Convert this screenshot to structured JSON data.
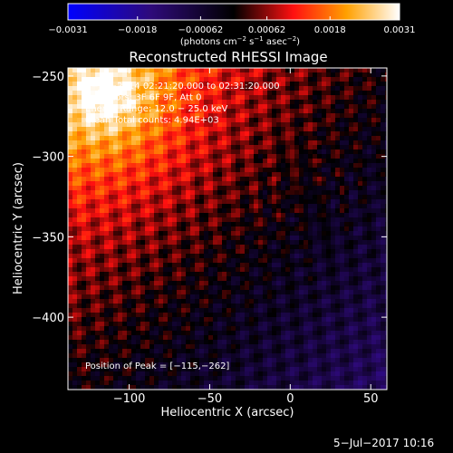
{
  "chart_data": {
    "type": "heatmap",
    "title": "Reconstructed RHESSI Image",
    "xlabel": "Heliocentric X (arcsec)",
    "ylabel": "Heliocentric Y (arcsec)",
    "xlim": [
      -138,
      60
    ],
    "ylim": [
      -445,
      -245
    ],
    "xticks": [
      -100,
      -50,
      0,
      50
    ],
    "xtick_labels": [
      "−100",
      "−50",
      "0",
      "50"
    ],
    "yticks": [
      -250,
      -300,
      -350,
      -400
    ],
    "ytick_labels": [
      "−250",
      "−300",
      "−350",
      "−400"
    ],
    "colorbar": {
      "min": -0.0031,
      "max": 0.0031,
      "tick_values": [
        -0.0031,
        -0.0018,
        -0.00062,
        0.00062,
        0.0018,
        0.0031
      ],
      "tick_labels": [
        "−0.0031",
        "−0.0018",
        "−0.00062",
        "0.00062",
        "0.0018",
        "0.0031"
      ],
      "units_text": "(photons cm",
      "units_exp1": "−2",
      "units_mid": " s",
      "units_exp2": "−1",
      "units_end": " asec",
      "units_exp3": "−2",
      "units_close": ")"
    },
    "annotations": [
      "5−Jul−2014 02:21:20.000 to 02:31:20.000",
      "Detectors: 3F 6F 9F, Att 0",
      "Energy Range: 12.0 − 25.0 keV",
      "Clean     Total counts: 4.94E+03"
    ],
    "peak_label": "Position of Peak = [−115,−262]",
    "peak_x": -115,
    "peak_y": -262
  },
  "footer_date": "5−Jul−2017 10:16"
}
